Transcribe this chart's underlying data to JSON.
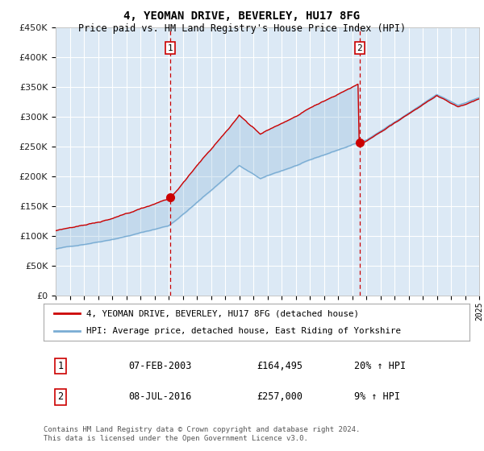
{
  "title": "4, YEOMAN DRIVE, BEVERLEY, HU17 8FG",
  "subtitle": "Price paid vs. HM Land Registry's House Price Index (HPI)",
  "legend_label_red": "4, YEOMAN DRIVE, BEVERLEY, HU17 8FG (detached house)",
  "legend_label_blue": "HPI: Average price, detached house, East Riding of Yorkshire",
  "footer": "Contains HM Land Registry data © Crown copyright and database right 2024.\nThis data is licensed under the Open Government Licence v3.0.",
  "table_rows": [
    {
      "num": "1",
      "date": "07-FEB-2003",
      "price": "£164,495",
      "change": "20% ↑ HPI"
    },
    {
      "num": "2",
      "date": "08-JUL-2016",
      "price": "£257,000",
      "change": "9% ↑ HPI"
    }
  ],
  "marker1_year": 2003.1,
  "marker1_price": 164495,
  "marker2_year": 2016.54,
  "marker2_price": 257000,
  "ylim": [
    0,
    450000
  ],
  "xlim_start": 1995,
  "xlim_end": 2025,
  "plot_bg": "#dce9f5",
  "grid_color": "#ffffff",
  "red_color": "#cc0000",
  "blue_color": "#7aadd4",
  "fill_color": "#c5d9ed"
}
